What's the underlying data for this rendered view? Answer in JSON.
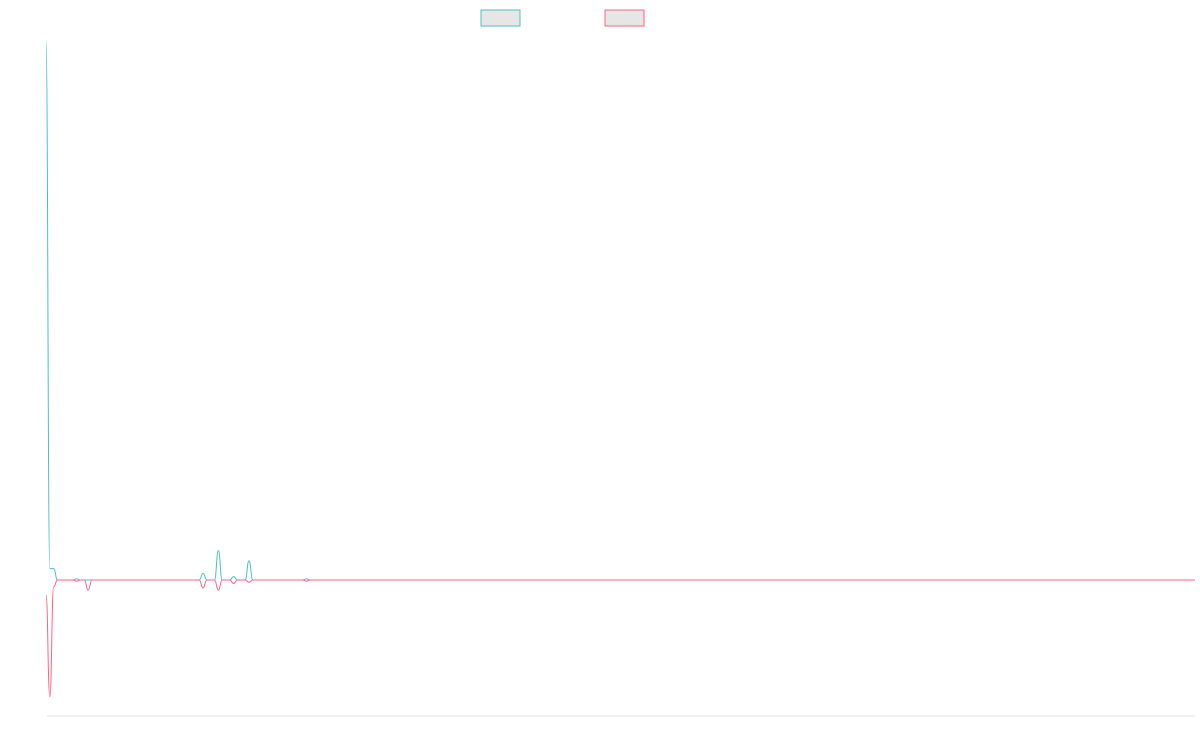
{
  "colors": {
    "series_a": "#4bc0c0",
    "series_b": "#ff6384",
    "legend_fill": "#e6e6e6",
    "axis": "#e0e0e0",
    "background": "#ffffff"
  },
  "chart_data": {
    "type": "line",
    "title": "",
    "xlabel": "",
    "ylabel": "",
    "grid": false,
    "legend": {
      "position": "top-center",
      "labels_visible": false
    },
    "x": [
      0,
      1,
      2,
      3,
      4,
      5,
      6,
      7,
      8,
      9,
      10,
      11,
      12,
      13,
      14,
      15,
      16,
      17,
      18,
      19,
      20,
      21,
      22,
      23,
      24,
      25,
      26,
      27,
      28,
      29,
      30,
      31,
      32,
      33,
      34,
      35,
      36,
      37,
      38,
      39,
      40,
      41,
      42,
      43,
      44,
      45,
      46,
      47,
      48,
      49,
      50,
      51,
      52,
      53,
      54,
      55,
      56,
      57,
      58,
      59,
      60,
      61,
      62,
      63,
      64,
      65,
      66,
      67,
      68,
      69,
      70,
      71,
      72,
      73,
      74,
      75,
      76,
      77,
      78,
      79,
      80,
      81,
      82,
      83,
      84,
      85,
      86,
      87,
      88,
      89,
      90,
      91,
      92,
      93,
      94,
      95,
      96,
      97,
      98,
      99,
      100,
      101,
      102,
      103,
      104,
      105,
      106,
      107,
      108,
      109,
      110,
      111,
      112,
      113,
      114,
      115,
      116,
      117,
      118,
      119,
      120,
      121,
      122,
      123,
      124,
      125,
      126,
      127,
      128,
      129,
      130,
      131,
      132,
      133,
      134,
      135,
      136,
      137,
      138,
      139,
      140,
      141,
      142,
      143,
      144,
      145,
      146,
      147,
      148,
      149,
      150,
      151,
      152,
      153,
      154,
      155,
      156,
      157,
      158,
      159,
      160,
      161,
      162,
      163,
      164,
      165,
      166,
      167,
      168,
      169,
      170,
      171,
      172,
      173,
      174,
      175,
      176,
      177,
      178,
      179,
      180,
      181,
      182,
      183,
      184,
      185,
      186,
      187,
      188,
      189,
      190,
      191,
      192,
      193,
      194,
      195,
      196,
      197,
      198,
      199,
      200,
      201,
      202,
      203,
      204,
      205,
      206,
      207,
      208,
      209,
      210,
      211,
      212,
      213,
      214,
      215,
      216,
      217,
      218,
      219,
      220,
      221,
      222,
      223,
      224,
      225,
      226,
      227,
      228,
      229,
      230,
      231,
      232,
      233,
      234,
      235,
      236,
      237,
      238,
      239,
      240,
      241,
      242,
      243,
      244,
      245,
      246,
      247,
      248,
      249,
      250,
      251,
      252,
      253,
      254,
      255,
      256,
      257,
      258,
      259,
      260,
      261,
      262,
      263,
      264,
      265,
      266,
      267,
      268,
      269,
      270,
      271,
      272,
      273,
      274,
      275,
      276,
      277,
      278,
      279,
      280,
      281,
      282,
      283,
      284,
      285,
      286,
      287,
      288,
      289,
      290,
      291,
      292,
      293,
      294,
      295,
      296,
      297,
      298,
      299,
      300
    ],
    "ylim": [
      -12,
      48
    ],
    "series": [
      {
        "color": "#4bc0c0",
        "sparse_values": {
          "0": 47.5,
          "1": 1,
          "2": 1,
          "3": 0,
          "8": 0.1,
          "11": 0,
          "41": 0.6,
          "42": 0,
          "43": 0,
          "44": 0,
          "45": 2.6,
          "46": 0,
          "49": 0.3,
          "50": 0,
          "53": 1.7,
          "54": 0,
          "68": 0.1
        },
        "default_value": 0
      },
      {
        "color": "#ff6384",
        "sparse_values": {
          "0": -1.3,
          "1": -10.3,
          "2": -0.6,
          "3": 0,
          "8": -0.1,
          "11": -0.9,
          "12": 0,
          "41": -0.7,
          "42": 0,
          "43": 0,
          "44": 0,
          "45": -0.9,
          "46": 0,
          "49": -0.3,
          "50": 0,
          "53": -0.2,
          "54": 0,
          "68": -0.1
        },
        "default_value": 0
      }
    ]
  }
}
